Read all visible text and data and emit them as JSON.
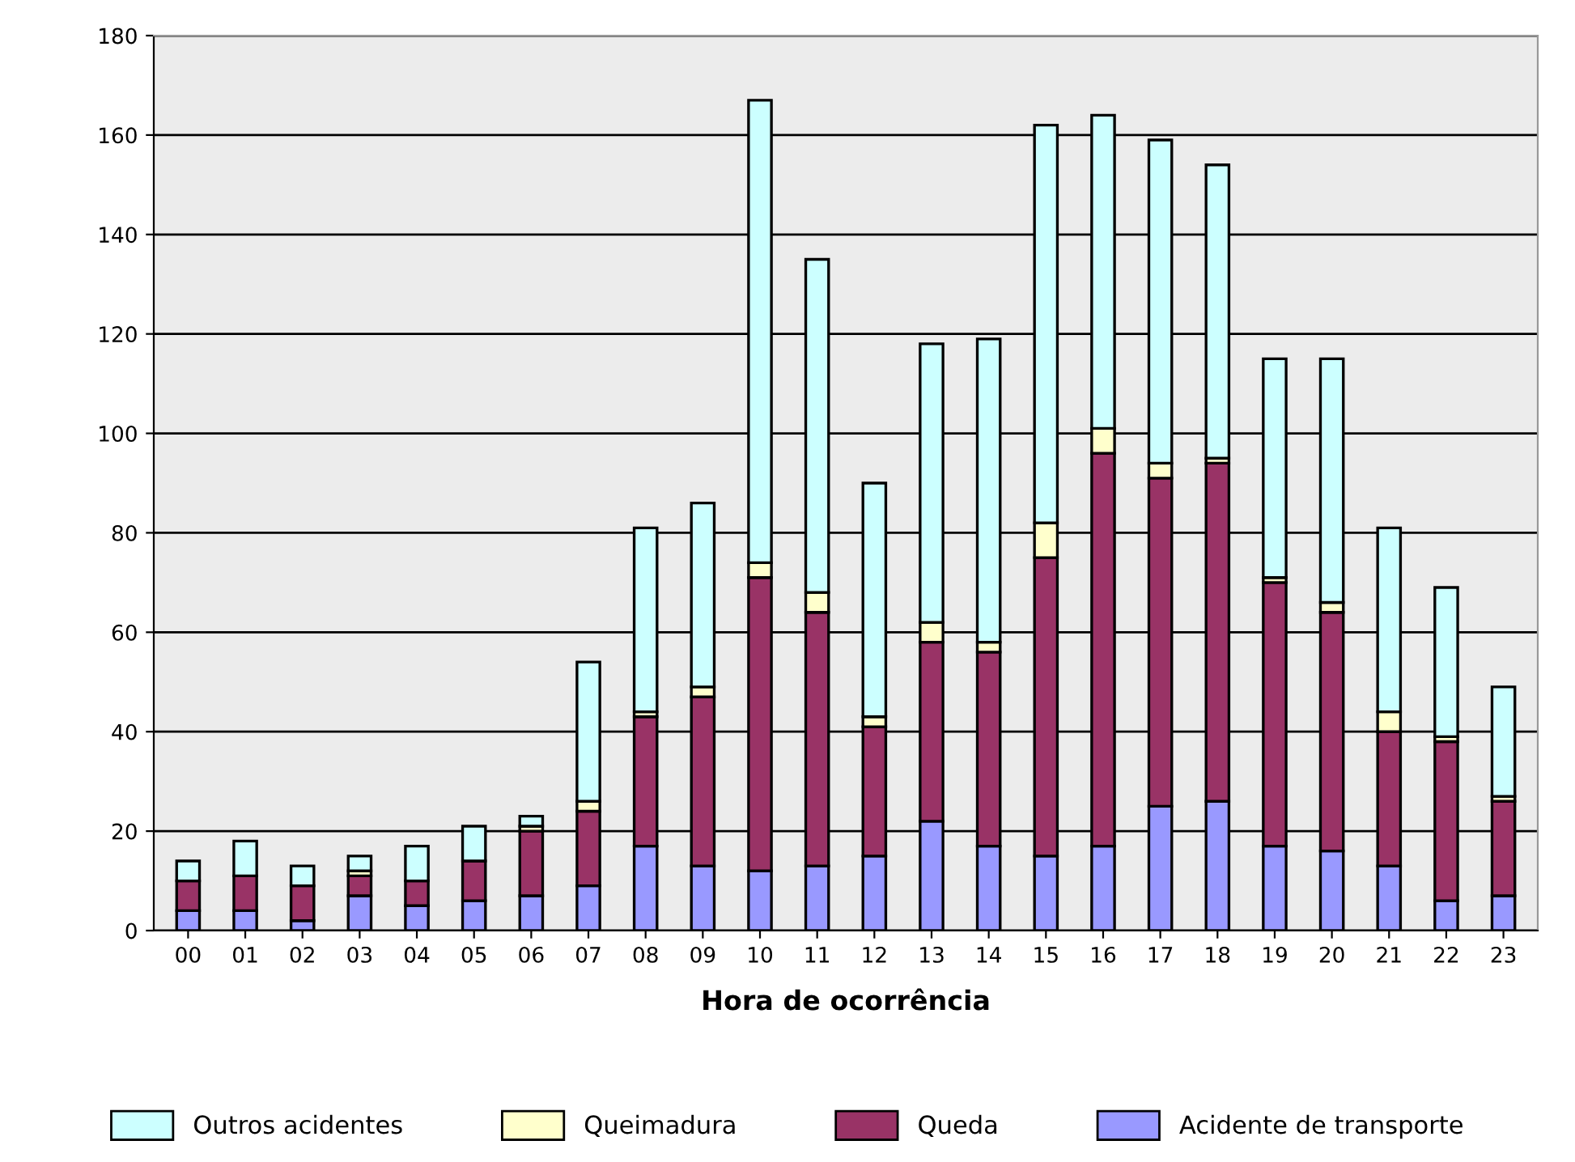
{
  "chart_data": {
    "type": "bar",
    "stacked": true,
    "xlabel": "Hora de ocorrência",
    "categories": [
      "00",
      "01",
      "02",
      "03",
      "04",
      "05",
      "06",
      "07",
      "08",
      "09",
      "10",
      "11",
      "12",
      "13",
      "14",
      "15",
      "16",
      "17",
      "18",
      "19",
      "20",
      "21",
      "22",
      "23"
    ],
    "series": [
      {
        "name": "Acidente de transporte",
        "color": "#9999ff",
        "values": [
          4,
          4,
          2,
          7,
          5,
          6,
          7,
          9,
          17,
          13,
          12,
          13,
          15,
          22,
          17,
          15,
          17,
          25,
          26,
          17,
          16,
          13,
          6,
          7
        ]
      },
      {
        "name": "Queda",
        "color": "#993366",
        "values": [
          6,
          7,
          7,
          4,
          5,
          8,
          13,
          15,
          26,
          34,
          59,
          51,
          26,
          36,
          39,
          60,
          79,
          66,
          68,
          53,
          48,
          27,
          32,
          19
        ]
      },
      {
        "name": "Queimadura",
        "color": "#ffffcc",
        "values": [
          0,
          0,
          0,
          1,
          0,
          0,
          1,
          2,
          1,
          2,
          3,
          4,
          2,
          4,
          2,
          7,
          5,
          3,
          1,
          1,
          2,
          4,
          1,
          1
        ]
      },
      {
        "name": "Outros acidentes",
        "color": "#ccffff",
        "values": [
          4,
          7,
          4,
          3,
          7,
          7,
          2,
          28,
          37,
          37,
          93,
          67,
          47,
          56,
          61,
          80,
          63,
          65,
          59,
          44,
          49,
          37,
          30,
          22
        ]
      }
    ],
    "ylim": [
      0,
      180
    ],
    "yticks": [
      0,
      20,
      40,
      60,
      80,
      100,
      120,
      140,
      160,
      180
    ],
    "grid": "y",
    "legend": "bottom"
  }
}
